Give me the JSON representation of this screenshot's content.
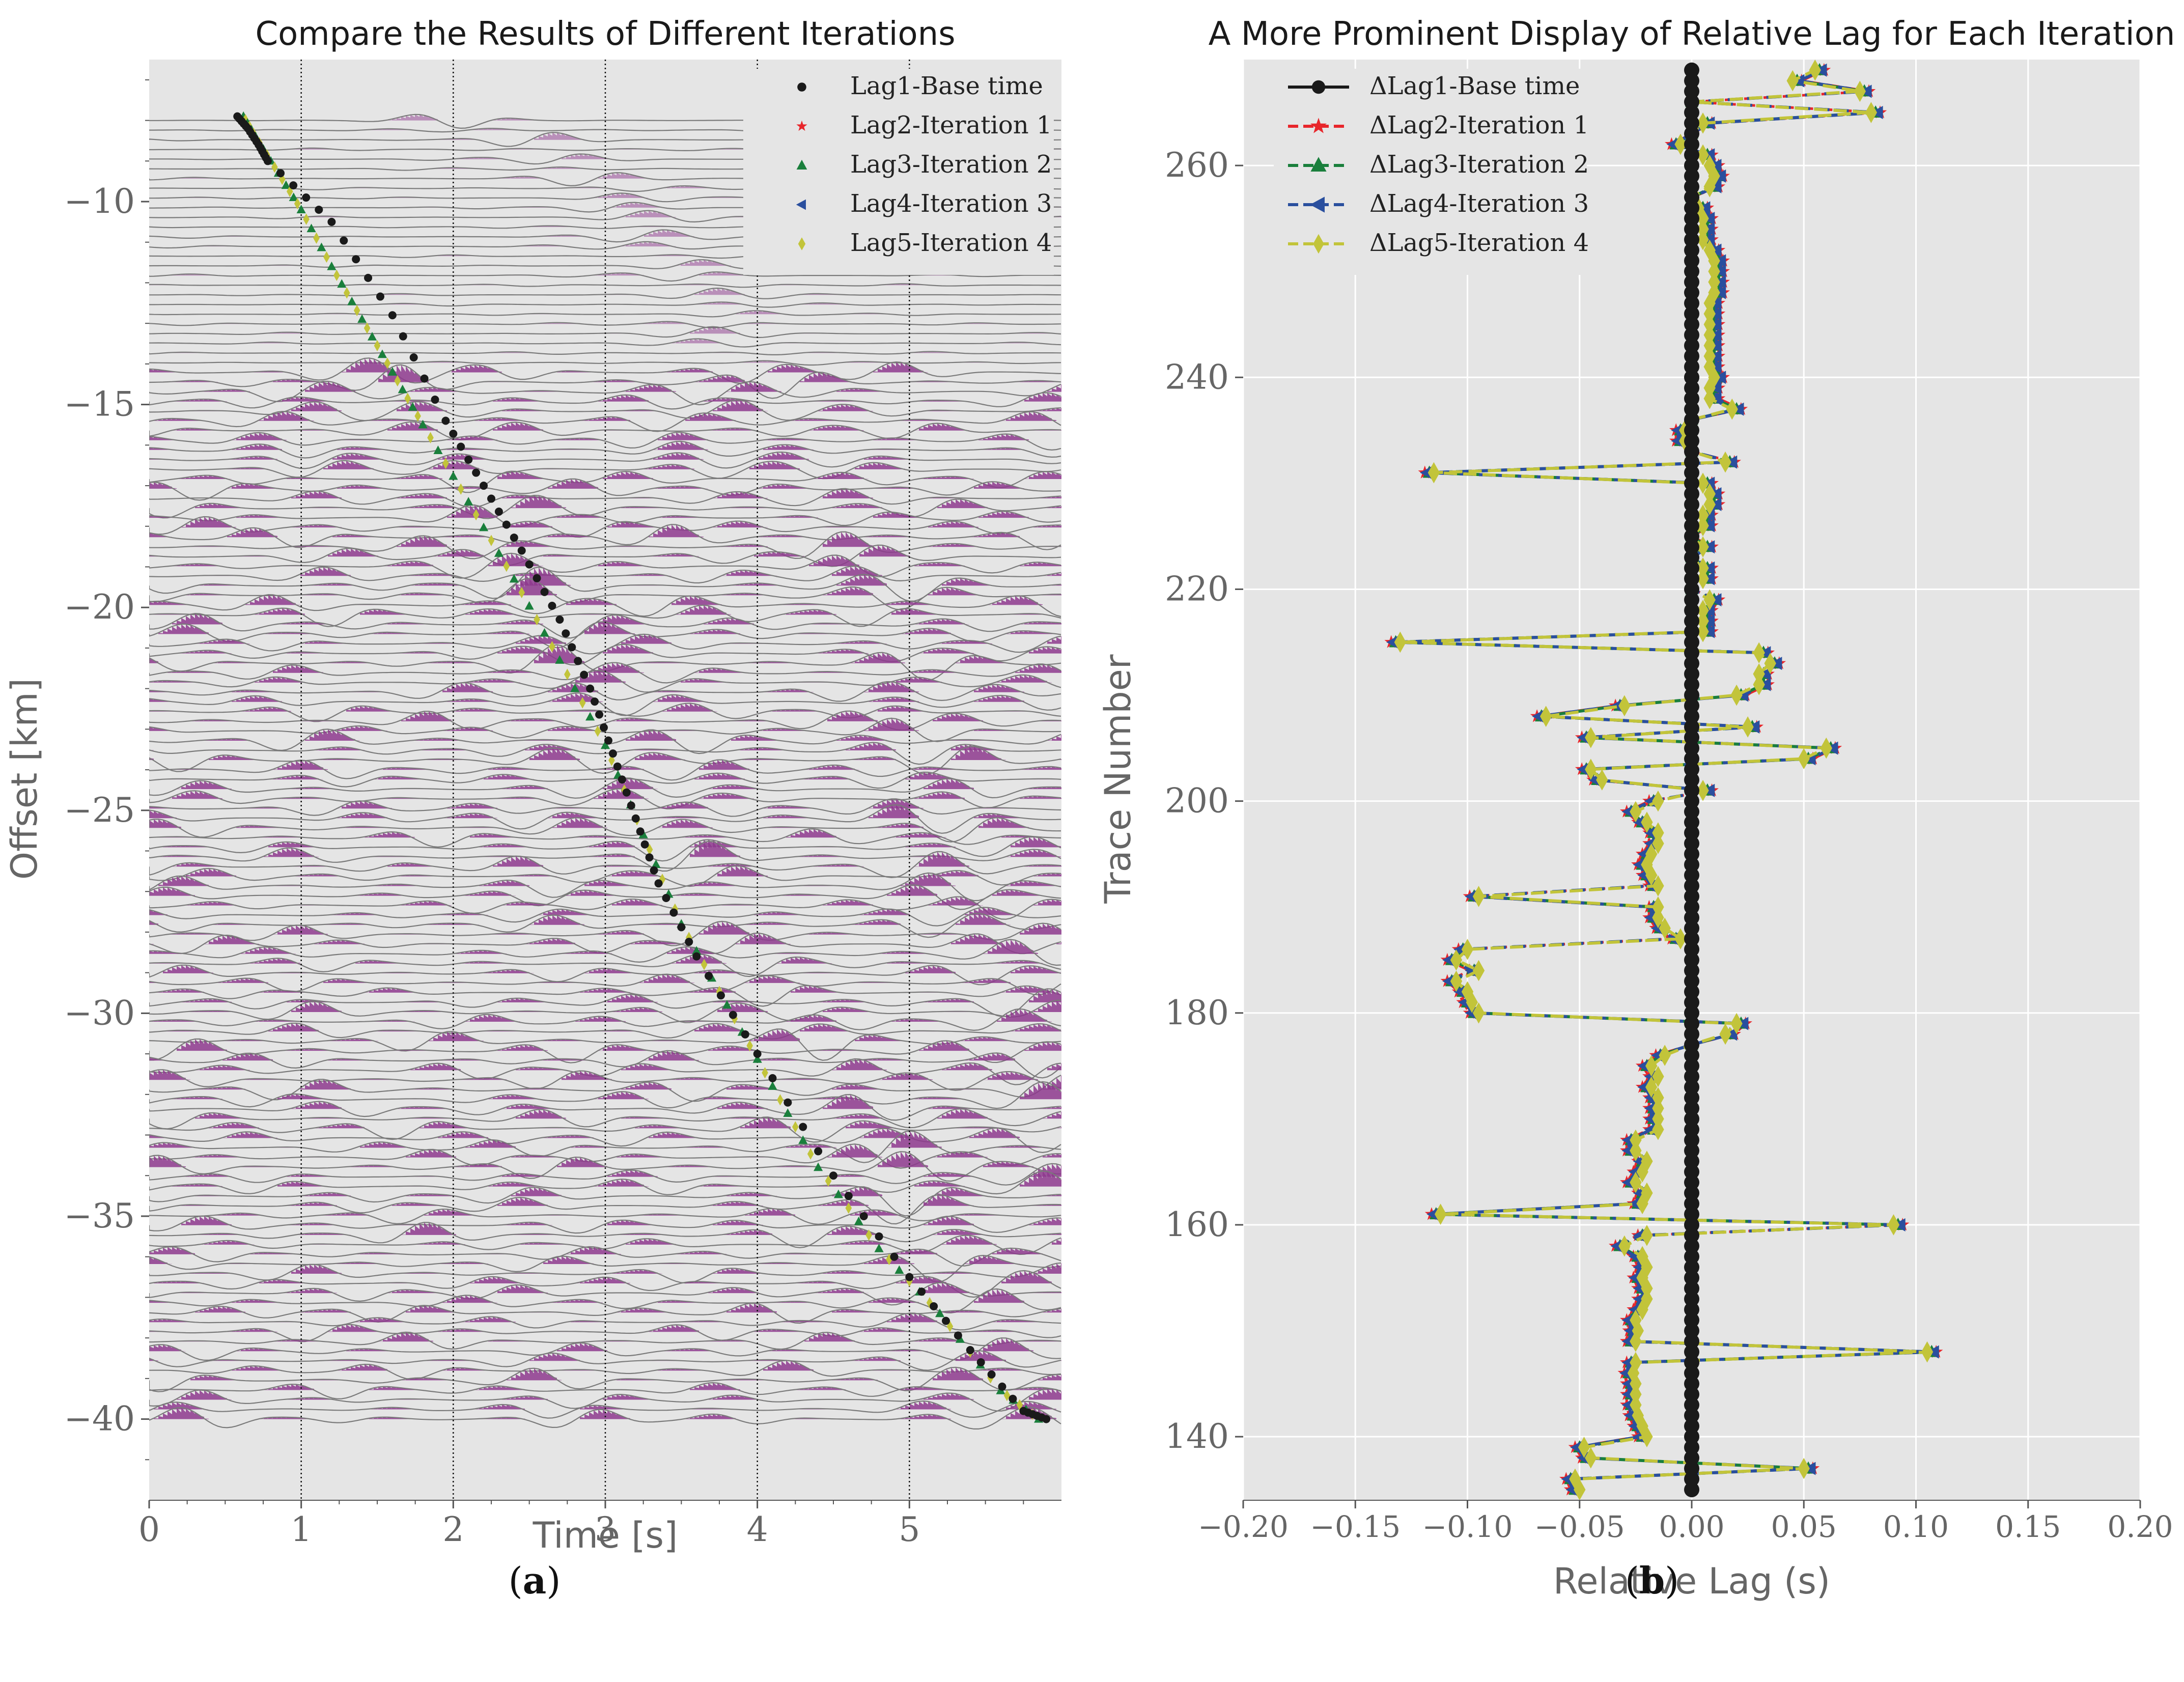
{
  "chart_data": [
    {
      "type": "scatter",
      "panel": "a",
      "title": "Compare the Results of Different Iterations",
      "xlabel": "Time [s]",
      "ylabel": "Offset [km]",
      "xlim": [
        0,
        6.0
      ],
      "ylim": [
        -42,
        -6.5
      ],
      "x_ticks": [
        0,
        1,
        2,
        3,
        4,
        5
      ],
      "y_ticks": [
        -10,
        -15,
        -20,
        -25,
        -30,
        -35,
        -40
      ],
      "y_tick_labels": [
        "−10",
        "−15",
        "−20",
        "−25",
        "−30",
        "−35",
        "−40"
      ],
      "vertical_gridlines": [
        1,
        2,
        3,
        4,
        5
      ],
      "legend": [
        {
          "label": "Lag1-Base time",
          "color": "#1a1a1a",
          "marker": "circle"
        },
        {
          "label": "Lag2-Iteration 1",
          "color": "#e8262b",
          "marker": "star"
        },
        {
          "label": "Lag3-Iteration 2",
          "color": "#1a7f3c",
          "marker": "triangle-up"
        },
        {
          "label": "Lag4-Iteration 3",
          "color": "#2a4f9e",
          "marker": "triangle-left"
        },
        {
          "label": "Lag5-Iteration 4",
          "color": "#c2c43a",
          "marker": "diamond"
        }
      ],
      "series": [
        {
          "name": "Lag1-Base time",
          "points": [
            [
              0.58,
              -7.9
            ],
            [
              0.65,
              -8.2
            ],
            [
              0.72,
              -8.6
            ],
            [
              0.78,
              -9.0
            ],
            [
              1.2,
              -10.5
            ],
            [
              1.6,
              -12.8
            ],
            [
              1.95,
              -15.4
            ],
            [
              2.2,
              -17.0
            ],
            [
              2.45,
              -18.6
            ],
            [
              2.7,
              -20.3
            ],
            [
              2.9,
              -22.0
            ],
            [
              3.05,
              -23.6
            ],
            [
              3.2,
              -25.2
            ],
            [
              3.35,
              -26.8
            ],
            [
              3.6,
              -28.6
            ],
            [
              4.0,
              -31.0
            ],
            [
              4.5,
              -34.0
            ],
            [
              5.0,
              -36.5
            ],
            [
              5.4,
              -38.3
            ],
            [
              5.75,
              -39.8
            ],
            [
              5.9,
              -40.0
            ]
          ]
        },
        {
          "name": "Lag5-Iteration 4",
          "points": [
            [
              0.62,
              -7.9
            ],
            [
              0.7,
              -8.4
            ],
            [
              0.85,
              -9.3
            ],
            [
              1.0,
              -10.2
            ],
            [
              1.2,
              -11.6
            ],
            [
              1.4,
              -12.9
            ],
            [
              1.6,
              -14.2
            ],
            [
              1.8,
              -15.5
            ],
            [
              2.1,
              -17.4
            ],
            [
              2.4,
              -19.3
            ],
            [
              2.7,
              -21.3
            ],
            [
              3.0,
              -23.4
            ],
            [
              3.25,
              -25.6
            ],
            [
              3.5,
              -27.8
            ],
            [
              3.8,
              -29.8
            ],
            [
              4.1,
              -31.8
            ],
            [
              4.4,
              -33.8
            ],
            [
              4.8,
              -35.8
            ],
            [
              5.2,
              -37.4
            ],
            [
              5.6,
              -39.3
            ],
            [
              5.85,
              -40.0
            ]
          ]
        }
      ]
    },
    {
      "type": "line",
      "panel": "b",
      "title": "A More Prominent Display of Relative Lag for Each Iteration",
      "xlabel": "Relative Lag (s)",
      "ylabel": "Trace Number",
      "xlim": [
        -0.2,
        0.2
      ],
      "ylim": [
        134,
        270
      ],
      "x_ticks": [
        -0.2,
        -0.15,
        -0.1,
        -0.05,
        0.0,
        0.05,
        0.1,
        0.15,
        0.2
      ],
      "x_tick_labels": [
        "−0.20",
        "−0.15",
        "−0.10",
        "−0.05",
        "0.00",
        "0.05",
        "0.10",
        "0.15",
        "0.20"
      ],
      "y_ticks": [
        140,
        160,
        180,
        200,
        220,
        240,
        260
      ],
      "y_tick_labels": [
        "140",
        "160",
        "180",
        "200",
        "220",
        "240",
        "260"
      ],
      "legend": [
        {
          "label": "ΔLag1-Base time",
          "color": "#1a1a1a",
          "marker": "circle"
        },
        {
          "label": "ΔLag2-Iteration 1",
          "color": "#e8262b",
          "marker": "star"
        },
        {
          "label": "ΔLag3-Iteration 2",
          "color": "#1a7f3c",
          "marker": "triangle-up"
        },
        {
          "label": "ΔLag4-Iteration 3",
          "color": "#2a4f9e",
          "marker": "triangle-left"
        },
        {
          "label": "ΔLag5-Iteration 4",
          "color": "#c2c43a",
          "marker": "diamond"
        }
      ],
      "trace_range": [
        135,
        269
      ],
      "series": [
        {
          "name": "ΔLag1-Base time",
          "lag_constant": 0.0
        },
        {
          "name": "ΔLag5-Iteration 4",
          "points": [
            [
              135,
              -0.05
            ],
            [
              136,
              -0.052
            ],
            [
              137,
              0.05
            ],
            [
              138,
              -0.045
            ],
            [
              139,
              -0.048
            ],
            [
              140,
              -0.02
            ],
            [
              141,
              -0.022
            ],
            [
              142,
              -0.024
            ],
            [
              143,
              -0.025
            ],
            [
              144,
              -0.025
            ],
            [
              145,
              -0.025
            ],
            [
              146,
              -0.026
            ],
            [
              147,
              -0.025
            ],
            [
              148,
              0.105
            ],
            [
              149,
              -0.025
            ],
            [
              150,
              -0.024
            ],
            [
              151,
              -0.025
            ],
            [
              152,
              -0.022
            ],
            [
              153,
              -0.02
            ],
            [
              154,
              -0.02
            ],
            [
              155,
              -0.022
            ],
            [
              156,
              -0.02
            ],
            [
              157,
              -0.022
            ],
            [
              158,
              -0.03
            ],
            [
              159,
              -0.02
            ],
            [
              160,
              0.09
            ],
            [
              161,
              -0.112
            ],
            [
              162,
              -0.022
            ],
            [
              163,
              -0.02
            ],
            [
              164,
              -0.025
            ],
            [
              165,
              -0.022
            ],
            [
              166,
              -0.02
            ],
            [
              167,
              -0.025
            ],
            [
              168,
              -0.025
            ],
            [
              169,
              -0.015
            ],
            [
              170,
              -0.015
            ],
            [
              171,
              -0.015
            ],
            [
              172,
              -0.015
            ],
            [
              173,
              -0.018
            ],
            [
              174,
              -0.015
            ],
            [
              175,
              -0.018
            ],
            [
              176,
              -0.012
            ],
            [
              177,
              0.0
            ],
            [
              178,
              0.015
            ],
            [
              179,
              0.02
            ],
            [
              180,
              -0.095
            ],
            [
              181,
              -0.098
            ],
            [
              182,
              -0.1
            ],
            [
              183,
              -0.105
            ],
            [
              184,
              -0.095
            ],
            [
              185,
              -0.105
            ],
            [
              186,
              -0.1
            ],
            [
              187,
              -0.005
            ],
            [
              188,
              -0.012
            ],
            [
              189,
              -0.015
            ],
            [
              190,
              -0.015
            ],
            [
              191,
              -0.095
            ],
            [
              192,
              -0.015
            ],
            [
              193,
              -0.018
            ],
            [
              194,
              -0.02
            ],
            [
              195,
              -0.018
            ],
            [
              196,
              -0.015
            ],
            [
              197,
              -0.015
            ],
            [
              198,
              -0.02
            ],
            [
              199,
              -0.025
            ],
            [
              200,
              -0.015
            ],
            [
              201,
              0.005
            ],
            [
              202,
              -0.04
            ],
            [
              203,
              -0.045
            ],
            [
              204,
              0.05
            ],
            [
              205,
              0.06
            ],
            [
              206,
              -0.045
            ],
            [
              207,
              0.025
            ],
            [
              208,
              -0.065
            ],
            [
              209,
              -0.03
            ],
            [
              210,
              0.02
            ],
            [
              211,
              0.03
            ],
            [
              212,
              0.03
            ],
            [
              213,
              0.035
            ],
            [
              214,
              0.03
            ],
            [
              215,
              -0.13
            ],
            [
              216,
              0.005
            ],
            [
              217,
              0.005
            ],
            [
              218,
              0.005
            ],
            [
              219,
              0.008
            ],
            [
              220,
              0.0
            ],
            [
              221,
              0.005
            ],
            [
              222,
              0.005
            ],
            [
              223,
              0.0
            ],
            [
              224,
              0.005
            ],
            [
              225,
              0.0
            ],
            [
              226,
              0.005
            ],
            [
              227,
              0.005
            ],
            [
              228,
              0.008
            ],
            [
              229,
              0.008
            ],
            [
              230,
              0.005
            ],
            [
              231,
              -0.115
            ],
            [
              232,
              0.015
            ],
            [
              233,
              0.0
            ],
            [
              234,
              -0.003
            ],
            [
              235,
              -0.003
            ],
            [
              236,
              0.0
            ],
            [
              237,
              0.018
            ],
            [
              238,
              0.008
            ],
            [
              239,
              0.008
            ],
            [
              240,
              0.01
            ],
            [
              241,
              0.008
            ],
            [
              242,
              0.008
            ],
            [
              243,
              0.008
            ],
            [
              244,
              0.008
            ],
            [
              245,
              0.008
            ],
            [
              246,
              0.008
            ],
            [
              247,
              0.008
            ],
            [
              248,
              0.01
            ],
            [
              249,
              0.01
            ],
            [
              250,
              0.01
            ],
            [
              251,
              0.01
            ],
            [
              252,
              0.008
            ],
            [
              253,
              0.005
            ],
            [
              254,
              0.005
            ],
            [
              255,
              0.005
            ],
            [
              256,
              0.003
            ],
            [
              257,
              0.0
            ],
            [
              258,
              0.008
            ],
            [
              259,
              0.01
            ],
            [
              260,
              0.008
            ],
            [
              261,
              0.005
            ],
            [
              262,
              -0.005
            ],
            [
              263,
              0.0
            ],
            [
              264,
              0.005
            ],
            [
              265,
              0.08
            ],
            [
              266,
              0.0
            ],
            [
              267,
              0.075
            ],
            [
              268,
              0.045
            ],
            [
              269,
              0.055
            ]
          ]
        }
      ]
    }
  ],
  "captions": {
    "a_open": "(",
    "a_letter": "a",
    "a_close": ")",
    "b_open": "(",
    "b_letter": "b",
    "b_close": ")"
  },
  "colors": {
    "plot_bg": "#e5e5e5",
    "wiggle_fill": "#8e3a8e",
    "wiggle_line": "#7a7a7a",
    "grid_white": "#ffffff",
    "vline": "#111111"
  }
}
